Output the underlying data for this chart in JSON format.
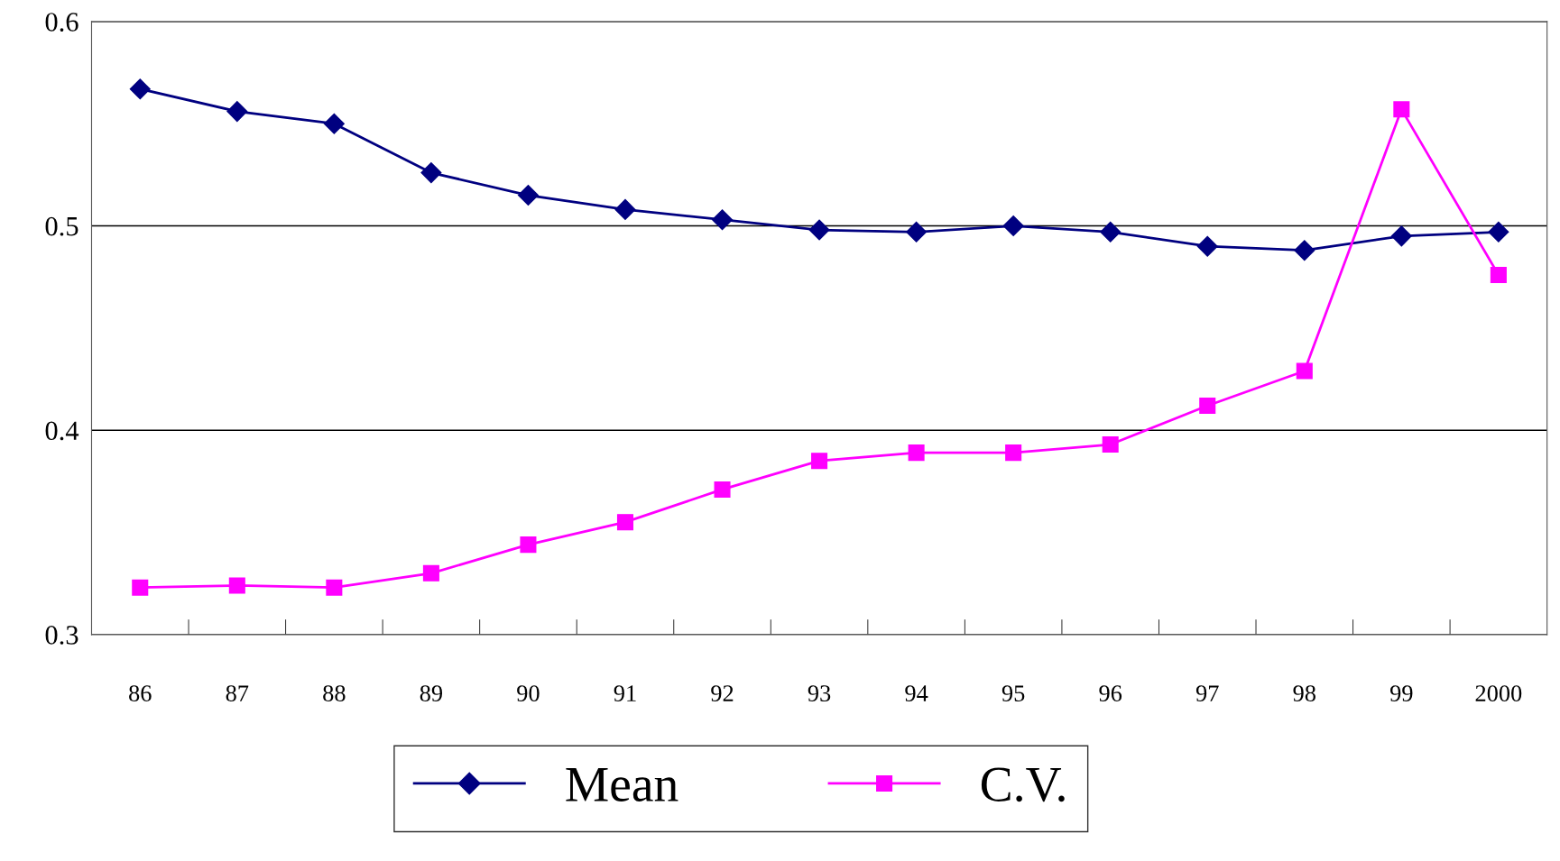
{
  "chart_data": {
    "type": "line",
    "categories": [
      "86",
      "87",
      "88",
      "89",
      "90",
      "91",
      "92",
      "93",
      "94",
      "95",
      "96",
      "97",
      "98",
      "99",
      "2000"
    ],
    "series": [
      {
        "name": "Mean",
        "color": "#000080",
        "marker": "diamond",
        "values": [
          0.567,
          0.556,
          0.55,
          0.526,
          0.515,
          0.508,
          0.503,
          0.498,
          0.497,
          0.5,
          0.497,
          0.49,
          0.488,
          0.495,
          0.497
        ]
      },
      {
        "name": "C.V.",
        "color": "#ff00ff",
        "marker": "square",
        "values": [
          0.323,
          0.324,
          0.323,
          0.33,
          0.344,
          0.355,
          0.371,
          0.385,
          0.389,
          0.389,
          0.393,
          0.412,
          0.429,
          0.557,
          0.476
        ]
      }
    ],
    "ylim": [
      0.3,
      0.6
    ],
    "yticks": [
      0.3,
      0.4,
      0.5,
      0.6
    ],
    "grid": "y",
    "legend": "bottom",
    "line_style": "solid"
  }
}
